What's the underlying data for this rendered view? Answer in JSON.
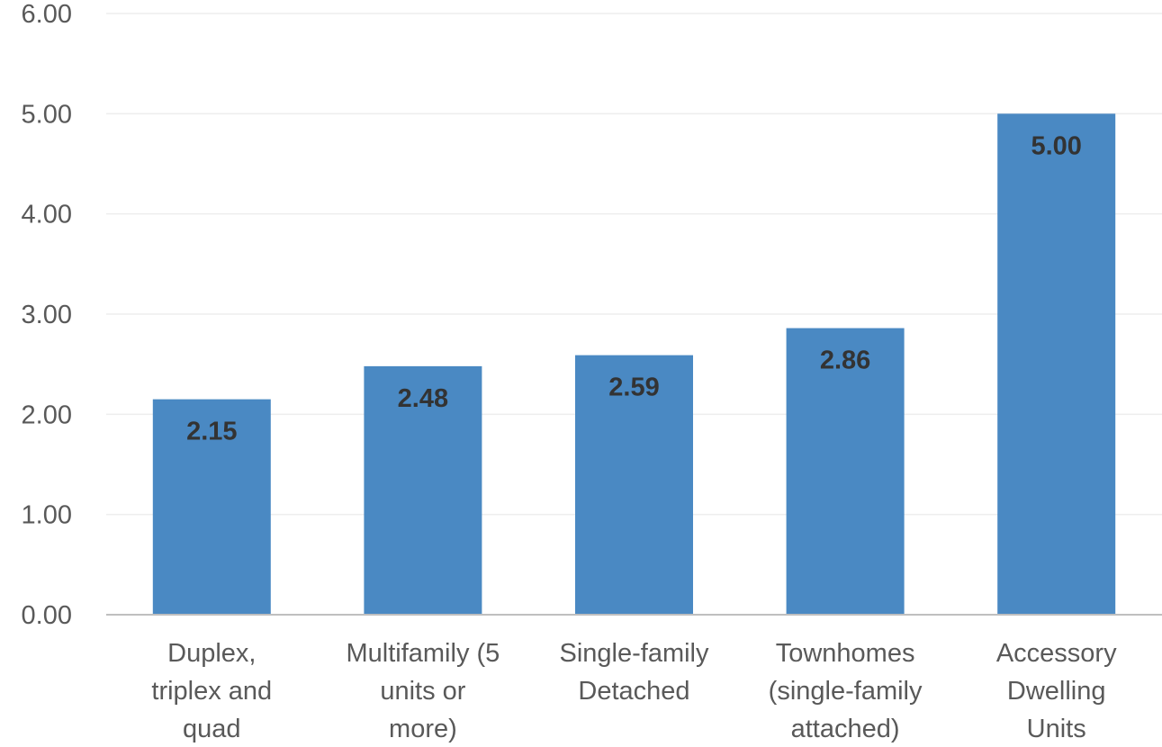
{
  "chart_data": {
    "type": "bar",
    "categories": [
      [
        "Duplex,",
        "triplex and",
        "quad"
      ],
      [
        "Multifamily (5",
        "units or",
        "more)"
      ],
      [
        "Single-family",
        "Detached"
      ],
      [
        "Townhomes",
        "(single-family",
        "attached)"
      ],
      [
        "Accessory",
        "Dwelling",
        "Units"
      ]
    ],
    "values": [
      2.15,
      2.48,
      2.59,
      2.86,
      5.0
    ],
    "data_labels": [
      "2.15",
      "2.48",
      "2.59",
      "2.86",
      "5.00"
    ],
    "title": "",
    "xlabel": "",
    "ylabel": "",
    "ylim": [
      0,
      6
    ],
    "yticks": [
      "0.00",
      "1.00",
      "2.00",
      "3.00",
      "4.00",
      "5.00",
      "6.00"
    ],
    "grid": true,
    "legend": "none",
    "colors": {
      "bar": "#4a89c3",
      "gridline": "#eeeeee",
      "axis": "#bfbfbf",
      "tick_text": "#595959",
      "data_label_text": "#333333"
    }
  }
}
